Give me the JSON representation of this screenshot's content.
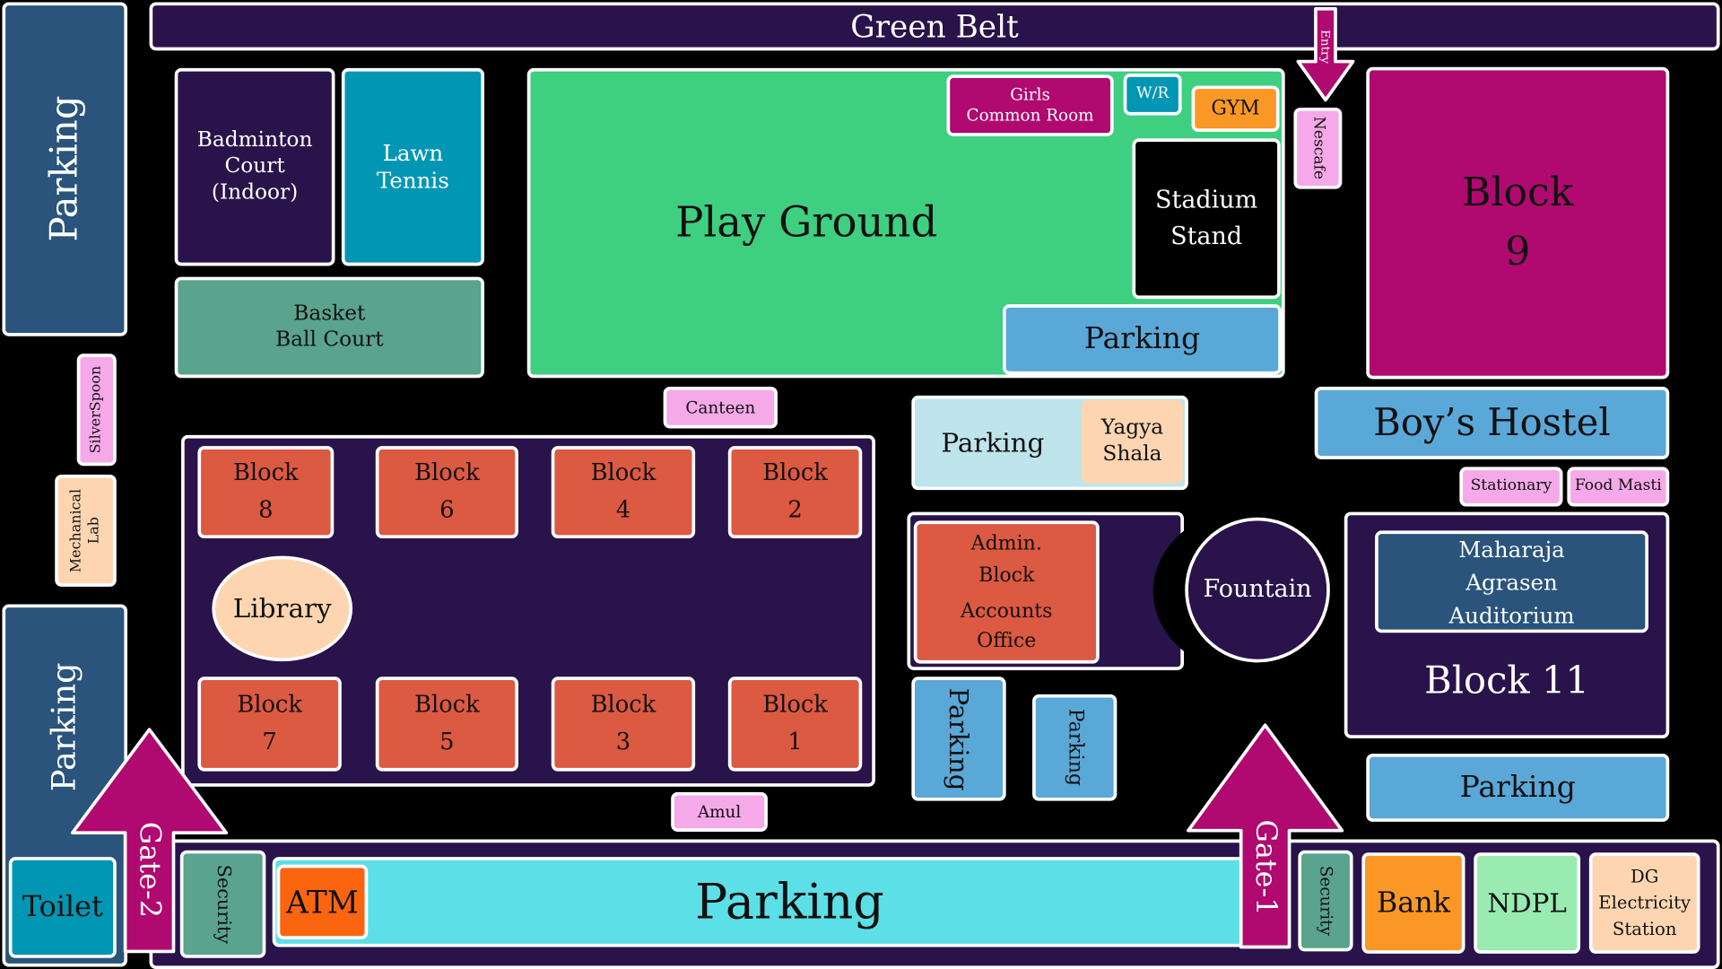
{
  "colors": {
    "background": "#000000",
    "dark_purple": "#29134a",
    "navy": "#2a547b",
    "teal": "#0096b4",
    "green": "#3ecf81",
    "magenta": "#b0096f",
    "sky_blue": "#5aa8d8",
    "red_orange": "#dc5942",
    "peach": "#fdd6b1",
    "pink": "#f6a9e8",
    "cyan": "#5cdfe6",
    "orange": "#fb9825",
    "mint": "#99ebb2",
    "sea_green": "#5aa38c",
    "light_blue": "#bee4ec",
    "atm_orange": "#fc6510"
  },
  "map": {
    "green_belt": "Green Belt",
    "parking_left_top": "Parking",
    "parking_left_bottom": "Parking",
    "silverspoon": "SilverSpoon",
    "mechanical_lab": "Mechanical\nLab",
    "toilet": "Toilet",
    "badminton": "Badminton\nCourt\n(Indoor)",
    "lawn_tennis": "Lawn\nTennis",
    "basketball": "Basket\nBall Court",
    "play_ground": "Play Ground",
    "girls_common_room": "Girls\nCommon Room",
    "wr": "W/R",
    "gym": "GYM",
    "stadium_stand": "Stadium\nStand",
    "parking_playground": "Parking",
    "entry": "Entry",
    "nescafe": "Nescafe",
    "block9": "Block\n9",
    "canteen": "Canteen",
    "parking_yagya": "Parking",
    "yagya_shala": "Yagya\nShala",
    "boys_hostel": "Boy’s Hostel",
    "stationary": "Stationary",
    "food_masti": "Food Masti",
    "blocks_top": [
      "Block\n8",
      "Block\n6",
      "Block\n4",
      "Block\n2"
    ],
    "blocks_bottom": [
      "Block\n7",
      "Block\n5",
      "Block\n3",
      "Block\n1"
    ],
    "library": "Library",
    "amul": "Amul",
    "admin_block": "Admin.\nBlock",
    "accounts_office": "Accounts\nOffice",
    "fountain": "Fountain",
    "auditorium": "Maharaja\nAgrasen\nAuditorium",
    "block11": "Block 11",
    "parking_v1": "Parking",
    "parking_v2": "Parking",
    "parking_block11": "Parking",
    "gate2": "Gate-2",
    "gate1": "Gate-1",
    "security_left": "Security",
    "security_right": "Security",
    "atm": "ATM",
    "parking_bottom": "Parking",
    "bank": "Bank",
    "ndpl": "NDPL",
    "dg_station": "DG\nElectricity\nStation"
  }
}
